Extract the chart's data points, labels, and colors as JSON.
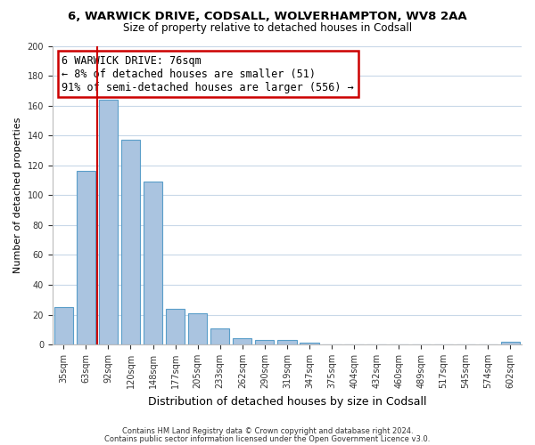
{
  "title1": "6, WARWICK DRIVE, CODSALL, WOLVERHAMPTON, WV8 2AA",
  "title2": "Size of property relative to detached houses in Codsall",
  "xlabel": "Distribution of detached houses by size in Codsall",
  "ylabel": "Number of detached properties",
  "bar_labels": [
    "35sqm",
    "63sqm",
    "92sqm",
    "120sqm",
    "148sqm",
    "177sqm",
    "205sqm",
    "233sqm",
    "262sqm",
    "290sqm",
    "319sqm",
    "347sqm",
    "375sqm",
    "404sqm",
    "432sqm",
    "460sqm",
    "489sqm",
    "517sqm",
    "545sqm",
    "574sqm",
    "602sqm"
  ],
  "bar_values": [
    25,
    116,
    164,
    137,
    109,
    24,
    21,
    11,
    4,
    3,
    3,
    1,
    0,
    0,
    0,
    0,
    0,
    0,
    0,
    0,
    2
  ],
  "bar_color": "#aac4e0",
  "bar_edge_color": "#5a9ec9",
  "marker_line_color": "#cc0000",
  "annotation_line1": "6 WARWICK DRIVE: 76sqm",
  "annotation_line2": "← 8% of detached houses are smaller (51)",
  "annotation_line3": "91% of semi-detached houses are larger (556) →",
  "annotation_box_edge": "#cc0000",
  "annotation_box_face": "#ffffff",
  "ylim": [
    0,
    200
  ],
  "yticks": [
    0,
    20,
    40,
    60,
    80,
    100,
    120,
    140,
    160,
    180,
    200
  ],
  "footer_line1": "Contains HM Land Registry data © Crown copyright and database right 2024.",
  "footer_line2": "Contains public sector information licensed under the Open Government Licence v3.0.",
  "bg_color": "#ffffff",
  "grid_color": "#c8d8e8"
}
